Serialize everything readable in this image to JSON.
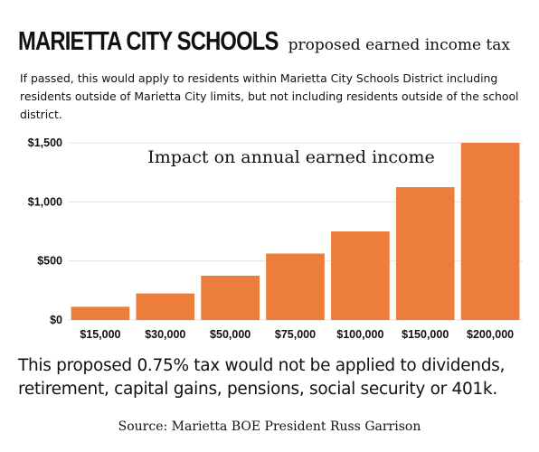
{
  "header": {
    "title": "MARIETTA CITY SCHOOLS",
    "subtitle": "proposed earned income tax"
  },
  "intro": "If passed, this would apply to residents within Marietta City Schools District including residents outside of Marietta City limits, but not including residents outside of the school district.",
  "colors": {
    "bar": "#ed7d3a",
    "grid": "#e4e4e4",
    "text": "#111111"
  },
  "chart_data": {
    "type": "bar",
    "title": "Impact on annual earned income",
    "xlabel": "",
    "ylabel": "",
    "categories": [
      "$15,000",
      "$30,000",
      "$50,000",
      "$75,000",
      "$100,000",
      "$150,000",
      "$200,000"
    ],
    "values": [
      112.5,
      225,
      375,
      562.5,
      750,
      1125,
      1500
    ],
    "ylim": [
      0,
      1500
    ],
    "yticks": [
      0,
      500,
      1000,
      1500
    ],
    "ytick_labels": [
      "$0",
      "$500",
      "$1,000",
      "$1,500"
    ],
    "grid": true,
    "legend": "none"
  },
  "footnote": "This proposed 0.75% tax would not be applied to dividends, retirement, capital gains, pensions, social security or 401k.",
  "source": "Source: Marietta BOE President Russ Garrison"
}
